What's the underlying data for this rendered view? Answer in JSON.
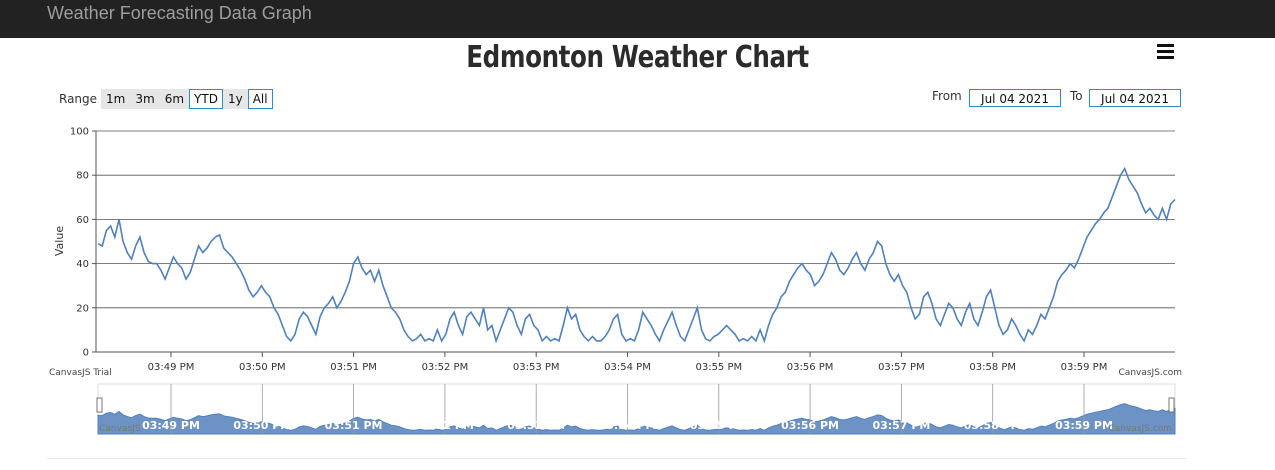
{
  "navbar": {
    "brand": "Weather Forecasting Data Graph"
  },
  "header": {
    "title": "Edmonton Weather Chart"
  },
  "range_selector": {
    "label": "Range",
    "buttons": [
      {
        "label": "1m",
        "outlined": false
      },
      {
        "label": "3m",
        "outlined": false
      },
      {
        "label": "6m",
        "outlined": false
      },
      {
        "label": "YTD",
        "outlined": true
      },
      {
        "label": "1y",
        "outlined": false
      },
      {
        "label": "All",
        "outlined": true
      }
    ]
  },
  "date_range": {
    "from_label": "From",
    "from_value": "Jul 04 2021",
    "to_label": "To",
    "to_value": "Jul 04 2021"
  },
  "credits": {
    "trial": "CanvasJS Trial",
    "site": "CanvasJS.com",
    "nav_left": "CanvasJS",
    "nav_right": "CanvasJS.com"
  },
  "colors": {
    "line": "#4f81bc",
    "navigator_fill": "#6d93c6",
    "navbar": "#222222"
  },
  "chart_data": {
    "type": "line",
    "ylabel": "Value",
    "ylim": [
      0,
      100
    ],
    "yticks": [
      0,
      20,
      40,
      60,
      80,
      100
    ],
    "x_start": "03:48:26 PM",
    "x_end": "04:00:10 PM",
    "xticks": [
      "03:49 PM",
      "03:50 PM",
      "03:51 PM",
      "03:52 PM",
      "03:53 PM",
      "03:54 PM",
      "03:55 PM",
      "03:56 PM",
      "03:57 PM",
      "03:58 PM",
      "03:59 PM"
    ],
    "navigator_labels": [
      "03:49 PM",
      "03:50 PM",
      "03:51 PM",
      "03:52 PM",
      "03:53 PM",
      "03:54 PM",
      "03:55 PM",
      "03:56 PM",
      "03:57 PM",
      "03:58 PM",
      "03:59 PM",
      "04:00"
    ],
    "grid": true,
    "series": [
      {
        "values": [
          49,
          48,
          55,
          57,
          52,
          60,
          50,
          45,
          42,
          48,
          52,
          45,
          41,
          40,
          40,
          37,
          33,
          38,
          43,
          40,
          38,
          33,
          36,
          42,
          48,
          45,
          47,
          50,
          52,
          53,
          47,
          45,
          43,
          40,
          37,
          33,
          28,
          25,
          27,
          30,
          27,
          25,
          20,
          17,
          12,
          7,
          5,
          8,
          15,
          18,
          16,
          12,
          8,
          16,
          20,
          22,
          25,
          20,
          23,
          27,
          32,
          40,
          43,
          38,
          35,
          37,
          32,
          37,
          30,
          25,
          20,
          18,
          15,
          10,
          7,
          5,
          6,
          8,
          5,
          6,
          5,
          10,
          5,
          8,
          15,
          18,
          12,
          8,
          16,
          18,
          15,
          12,
          20,
          10,
          12,
          5,
          10,
          15,
          20,
          18,
          12,
          8,
          15,
          17,
          12,
          10,
          5,
          7,
          5,
          6,
          5,
          12,
          20,
          15,
          17,
          10,
          7,
          5,
          7,
          5,
          5,
          7,
          10,
          15,
          17,
          8,
          5,
          6,
          5,
          10,
          18,
          15,
          12,
          8,
          5,
          10,
          14,
          18,
          12,
          7,
          5,
          10,
          15,
          20,
          10,
          6,
          5,
          7,
          8,
          10,
          12,
          10,
          8,
          5,
          6,
          5,
          7,
          5,
          10,
          5,
          12,
          17,
          20,
          25,
          27,
          32,
          35,
          38,
          40,
          37,
          35,
          30,
          32,
          35,
          40,
          45,
          42,
          37,
          35,
          38,
          42,
          45,
          40,
          37,
          42,
          45,
          50,
          48,
          40,
          35,
          32,
          35,
          30,
          27,
          20,
          15,
          17,
          25,
          27,
          22,
          15,
          12,
          17,
          22,
          20,
          15,
          12,
          18,
          22,
          15,
          12,
          18,
          25,
          28,
          20,
          12,
          8,
          10,
          15,
          12,
          8,
          5,
          10,
          8,
          12,
          17,
          15,
          20,
          25,
          32,
          35,
          37,
          40,
          38,
          42,
          47,
          52,
          55,
          58,
          60,
          63,
          65,
          70,
          75,
          80,
          83,
          78,
          75,
          72,
          67,
          63,
          65,
          62,
          60,
          65,
          60,
          67,
          69
        ]
      }
    ]
  }
}
